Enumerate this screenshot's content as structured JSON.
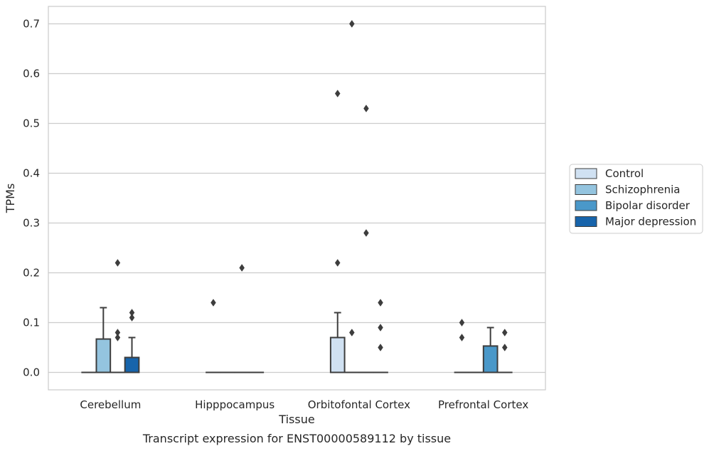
{
  "chart_data": {
    "type": "box",
    "title": "",
    "caption": "Transcript expression for ENST00000589112 by tissue",
    "xlabel": "Tissue",
    "ylabel": "TPMs",
    "ylim": [
      -0.035,
      0.735
    ],
    "yticks": [
      0.0,
      0.1,
      0.2,
      0.3,
      0.4,
      0.5,
      0.6,
      0.7
    ],
    "ytick_labels": [
      "0.0",
      "0.1",
      "0.2",
      "0.3",
      "0.4",
      "0.5",
      "0.6",
      "0.7"
    ],
    "grid": true,
    "legend_position": "right",
    "categories": [
      "Cerebellum",
      "Hipppocampus",
      "Orbitofontal Cortex",
      "Prefrontal Cortex"
    ],
    "series": [
      {
        "name": "Control",
        "color": "#d0e1f2",
        "boxes": [
          {
            "q1": 0,
            "median": 0,
            "q3": 0,
            "whisker_low": 0,
            "whisker_high": 0,
            "outliers": []
          },
          {
            "q1": 0,
            "median": 0,
            "q3": 0,
            "whisker_low": 0,
            "whisker_high": 0,
            "outliers": [
              0.14
            ]
          },
          {
            "q1": 0,
            "median": 0,
            "q3": 0.07,
            "whisker_low": 0,
            "whisker_high": 0.12,
            "outliers": [
              0.22,
              0.56
            ]
          },
          {
            "q1": 0,
            "median": 0,
            "q3": 0,
            "whisker_low": 0,
            "whisker_high": 0,
            "outliers": [
              0.07,
              0.1
            ]
          }
        ]
      },
      {
        "name": "Schizophrenia",
        "color": "#94c4df",
        "boxes": [
          {
            "q1": 0,
            "median": 0,
            "q3": 0.067,
            "whisker_low": 0,
            "whisker_high": 0.13,
            "outliers": []
          },
          {
            "q1": 0,
            "median": 0,
            "q3": 0,
            "whisker_low": 0,
            "whisker_high": 0,
            "outliers": []
          },
          {
            "q1": 0,
            "median": 0,
            "q3": 0,
            "whisker_low": 0,
            "whisker_high": 0,
            "outliers": [
              0.08,
              0.7
            ]
          },
          {
            "q1": 0,
            "median": 0,
            "q3": 0,
            "whisker_low": 0,
            "whisker_high": 0,
            "outliers": []
          }
        ]
      },
      {
        "name": "Bipolar disorder",
        "color": "#4a98c9",
        "boxes": [
          {
            "q1": 0,
            "median": 0,
            "q3": 0,
            "whisker_low": 0,
            "whisker_high": 0,
            "outliers": [
              0.07,
              0.08,
              0.22
            ]
          },
          {
            "q1": 0,
            "median": 0,
            "q3": 0,
            "whisker_low": 0,
            "whisker_high": 0,
            "outliers": [
              0.21
            ]
          },
          {
            "q1": 0,
            "median": 0,
            "q3": 0,
            "whisker_low": 0,
            "whisker_high": 0,
            "outliers": [
              0.28,
              0.53
            ]
          },
          {
            "q1": 0,
            "median": 0,
            "q3": 0.053,
            "whisker_low": 0,
            "whisker_high": 0.09,
            "outliers": []
          }
        ]
      },
      {
        "name": "Major depression",
        "color": "#1764ab",
        "boxes": [
          {
            "q1": 0,
            "median": 0,
            "q3": 0.03,
            "whisker_low": 0,
            "whisker_high": 0.07,
            "outliers": [
              0.11,
              0.12
            ]
          },
          {
            "q1": 0,
            "median": 0,
            "q3": 0,
            "whisker_low": 0,
            "whisker_high": 0,
            "outliers": []
          },
          {
            "q1": 0,
            "median": 0,
            "q3": 0,
            "whisker_low": 0,
            "whisker_high": 0,
            "outliers": [
              0.05,
              0.09,
              0.14
            ]
          },
          {
            "q1": 0,
            "median": 0,
            "q3": 0,
            "whisker_low": 0,
            "whisker_high": 0,
            "outliers": [
              0.05,
              0.08
            ]
          }
        ]
      }
    ]
  }
}
